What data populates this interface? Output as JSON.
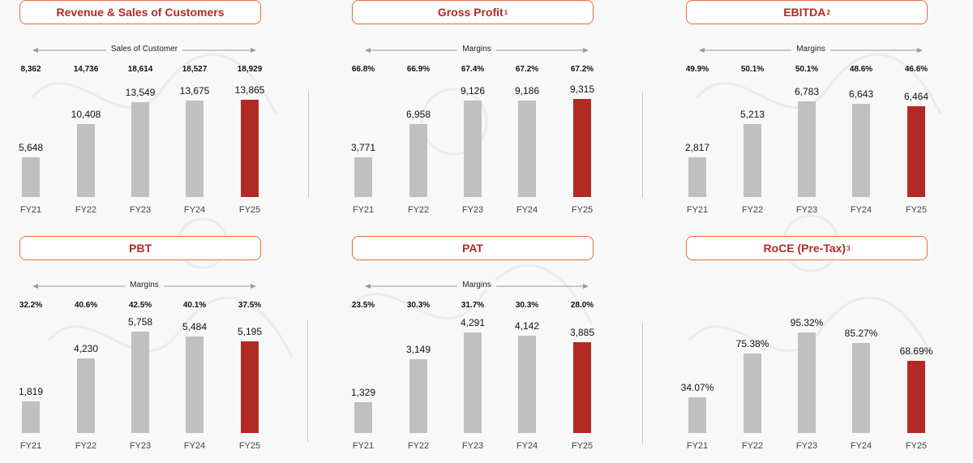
{
  "colors": {
    "title_border": "#e8703a",
    "title_text": "#b22a26",
    "bar_grey": "#c0c0c0",
    "bar_highlight": "#b22a26"
  },
  "chart_data": [
    {
      "type": "bar",
      "title": "Revenue & Sales of Customers",
      "title_sup": "",
      "arrow_label": "Sales of Customer",
      "top_values": [
        "8,362",
        "14,736",
        "18,614",
        "18,527",
        "18,929"
      ],
      "categories": [
        "FY21",
        "FY22",
        "FY23",
        "FY24",
        "FY25"
      ],
      "values": [
        5648,
        10408,
        13549,
        13675,
        13865
      ],
      "labels": [
        "5,648",
        "10,408",
        "13,549",
        "13,675",
        "13,865"
      ],
      "highlight_index": 4,
      "ylim": [
        0,
        15000
      ]
    },
    {
      "type": "bar",
      "title": "Gross Profit",
      "title_sup": "1",
      "arrow_label": "Margins",
      "top_values": [
        "66.8%",
        "66.9%",
        "67.4%",
        "67.2%",
        "67.2%"
      ],
      "categories": [
        "FY21",
        "FY22",
        "FY23",
        "FY24",
        "FY25"
      ],
      "values": [
        3771,
        6958,
        9126,
        9186,
        9315
      ],
      "labels": [
        "3,771",
        "6,958",
        "9,126",
        "9,186",
        "9,315"
      ],
      "highlight_index": 4,
      "ylim": [
        0,
        10000
      ]
    },
    {
      "type": "bar",
      "title": "EBITDA",
      "title_sup": "2",
      "arrow_label": "Margins",
      "top_values": [
        "49.9%",
        "50.1%",
        "50.1%",
        "48.6%",
        "46.6%"
      ],
      "categories": [
        "FY21",
        "FY22",
        "FY23",
        "FY24",
        "FY25"
      ],
      "values": [
        2817,
        5213,
        6783,
        6643,
        6464
      ],
      "labels": [
        "2,817",
        "5,213",
        "6,783",
        "6,643",
        "6,464"
      ],
      "highlight_index": 4,
      "ylim": [
        0,
        7500
      ]
    },
    {
      "type": "bar",
      "title": "PBT",
      "title_sup": "",
      "arrow_label": "Margins",
      "top_values": [
        "32.2%",
        "40.6%",
        "42.5%",
        "40.1%",
        "37.5%"
      ],
      "categories": [
        "FY21",
        "FY22",
        "FY23",
        "FY24",
        "FY25"
      ],
      "values": [
        1819,
        4230,
        5758,
        5484,
        5195
      ],
      "labels": [
        "1,819",
        "4,230",
        "5,758",
        "5,484",
        "5,195"
      ],
      "highlight_index": 4,
      "ylim": [
        0,
        6000
      ]
    },
    {
      "type": "bar",
      "title": "PAT",
      "title_sup": "",
      "arrow_label": "Margins",
      "top_values": [
        "23.5%",
        "30.3%",
        "31.7%",
        "30.3%",
        "28.0%"
      ],
      "categories": [
        "FY21",
        "FY22",
        "FY23",
        "FY24",
        "FY25"
      ],
      "values": [
        1329,
        3149,
        4291,
        4142,
        3885
      ],
      "labels": [
        "1,329",
        "3,149",
        "4,291",
        "4,142",
        "3,885"
      ],
      "highlight_index": 4,
      "ylim": [
        0,
        4500
      ]
    },
    {
      "type": "bar",
      "title": "RoCE (Pre-Tax)",
      "title_sup": "3",
      "arrow_label": "",
      "top_values": [],
      "categories": [
        "FY21",
        "FY22",
        "FY23",
        "FY24",
        "FY25"
      ],
      "values": [
        34.07,
        75.38,
        95.32,
        85.27,
        68.69
      ],
      "labels": [
        "34.07%",
        "75.38%",
        "95.32%",
        "85.27%",
        "68.69%"
      ],
      "highlight_index": 4,
      "ylim": [
        0,
        100
      ]
    }
  ]
}
